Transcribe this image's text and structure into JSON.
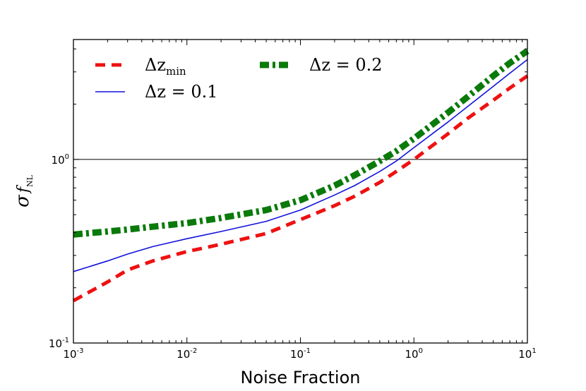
{
  "chart_data": {
    "type": "line",
    "title": "",
    "xlabel": "Noise Fraction",
    "ylabel": {
      "symbol": "σ",
      "f": "f",
      "sub": "NL"
    },
    "xscale": "log",
    "yscale": "log",
    "xlim": [
      0.001,
      10
    ],
    "ylim": [
      0.1,
      4.5
    ],
    "x_ticks": [
      {
        "base": "10",
        "exp": "-3",
        "value": 0.001
      },
      {
        "base": "10",
        "exp": "-2",
        "value": 0.01
      },
      {
        "base": "10",
        "exp": "-1",
        "value": 0.1
      },
      {
        "base": "10",
        "exp": "0",
        "value": 1
      },
      {
        "base": "10",
        "exp": "1",
        "value": 10
      }
    ],
    "y_ticks": [
      {
        "base": "10",
        "exp": "-1",
        "value": 0.1
      },
      {
        "base": "10",
        "exp": "0",
        "value": 1
      }
    ],
    "reference_line": {
      "y": 1.0,
      "color": "#000000"
    },
    "legend": {
      "placement": "top-left",
      "columns": 2
    },
    "series": [
      {
        "name": "Δz_min",
        "label_main": "Δz",
        "label_sub": "min",
        "color": "#ee1111",
        "style": "dashed",
        "x": [
          0.001,
          0.002,
          0.003,
          0.005,
          0.01,
          0.02,
          0.05,
          0.1,
          0.2,
          0.3,
          0.5,
          0.7,
          1,
          2,
          3,
          5,
          7,
          10
        ],
        "y": [
          0.17,
          0.215,
          0.25,
          0.28,
          0.315,
          0.345,
          0.395,
          0.47,
          0.56,
          0.63,
          0.75,
          0.86,
          1.0,
          1.38,
          1.68,
          2.1,
          2.45,
          2.85
        ]
      },
      {
        "name": "Δz = 0.1",
        "label_main": "Δz = 0.1",
        "label_sub": "",
        "color": "#1111dd",
        "style": "solid",
        "x": [
          0.001,
          0.002,
          0.003,
          0.005,
          0.01,
          0.02,
          0.05,
          0.1,
          0.2,
          0.3,
          0.5,
          0.7,
          1,
          2,
          3,
          5,
          7,
          10
        ],
        "y": [
          0.245,
          0.28,
          0.305,
          0.335,
          0.37,
          0.405,
          0.46,
          0.53,
          0.64,
          0.72,
          0.86,
          0.98,
          1.16,
          1.6,
          1.95,
          2.5,
          2.95,
          3.5
        ]
      },
      {
        "name": "Δz = 0.2",
        "label_main": "Δz = 0.2",
        "label_sub": "",
        "color": "#0a7a0a",
        "style": "dashdot",
        "x": [
          0.001,
          0.002,
          0.003,
          0.005,
          0.01,
          0.02,
          0.05,
          0.1,
          0.2,
          0.3,
          0.5,
          0.7,
          1,
          2,
          3,
          5,
          7,
          10
        ],
        "y": [
          0.39,
          0.405,
          0.415,
          0.43,
          0.45,
          0.48,
          0.53,
          0.6,
          0.72,
          0.82,
          0.98,
          1.11,
          1.3,
          1.8,
          2.2,
          2.85,
          3.35,
          3.9
        ]
      }
    ]
  }
}
